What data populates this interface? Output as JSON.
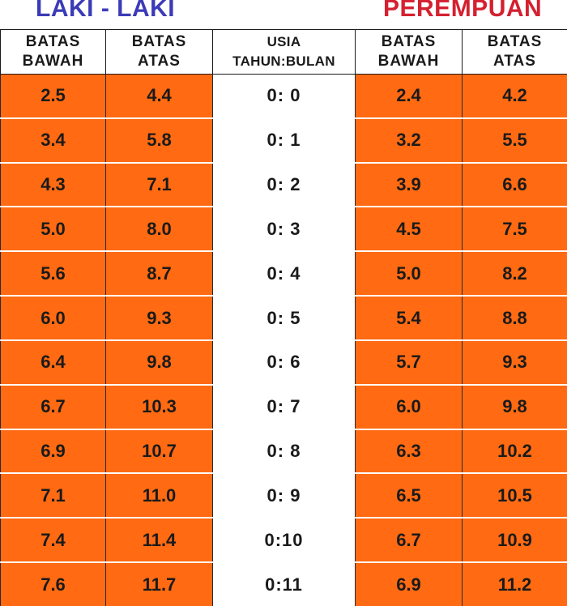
{
  "groups": {
    "male": "LAKI - LAKI",
    "female": "PEREMPUAN"
  },
  "columns": {
    "male_lower": [
      "BATAS",
      "BAWAH"
    ],
    "male_upper": [
      "BATAS",
      "ATAS"
    ],
    "age": [
      "USIA",
      "TAHUN:BULAN"
    ],
    "female_lower": [
      "BATAS",
      "BAWAH"
    ],
    "female_upper": [
      "BATAS",
      "ATAS"
    ]
  },
  "rows": [
    {
      "male_lower": "2.5",
      "male_upper": "4.4",
      "age": "0:  0",
      "female_lower": "2.4",
      "female_upper": "4.2"
    },
    {
      "male_lower": "3.4",
      "male_upper": "5.8",
      "age": "0:  1",
      "female_lower": "3.2",
      "female_upper": "5.5"
    },
    {
      "male_lower": "4.3",
      "male_upper": "7.1",
      "age": "0:  2",
      "female_lower": "3.9",
      "female_upper": "6.6"
    },
    {
      "male_lower": "5.0",
      "male_upper": "8.0",
      "age": "0:  3",
      "female_lower": "4.5",
      "female_upper": "7.5"
    },
    {
      "male_lower": "5.6",
      "male_upper": "8.7",
      "age": "0:  4",
      "female_lower": "5.0",
      "female_upper": "8.2"
    },
    {
      "male_lower": "6.0",
      "male_upper": "9.3",
      "age": "0:  5",
      "female_lower": "5.4",
      "female_upper": "8.8"
    },
    {
      "male_lower": "6.4",
      "male_upper": "9.8",
      "age": "0:  6",
      "female_lower": "5.7",
      "female_upper": "9.3"
    },
    {
      "male_lower": "6.7",
      "male_upper": "10.3",
      "age": "0:  7",
      "female_lower": "6.0",
      "female_upper": "9.8"
    },
    {
      "male_lower": "6.9",
      "male_upper": "10.7",
      "age": "0:  8",
      "female_lower": "6.3",
      "female_upper": "10.2"
    },
    {
      "male_lower": "7.1",
      "male_upper": "11.0",
      "age": "0:  9",
      "female_lower": "6.5",
      "female_upper": "10.5"
    },
    {
      "male_lower": "7.4",
      "male_upper": "11.4",
      "age": "0:10",
      "female_lower": "6.7",
      "female_upper": "10.9"
    },
    {
      "male_lower": "7.6",
      "male_upper": "11.7",
      "age": "0:11",
      "female_lower": "6.9",
      "female_upper": "11.2"
    }
  ],
  "colors": {
    "cell_orange": "#ff6a12",
    "male_label": "#3b3bb8",
    "female_label": "#d42030"
  }
}
